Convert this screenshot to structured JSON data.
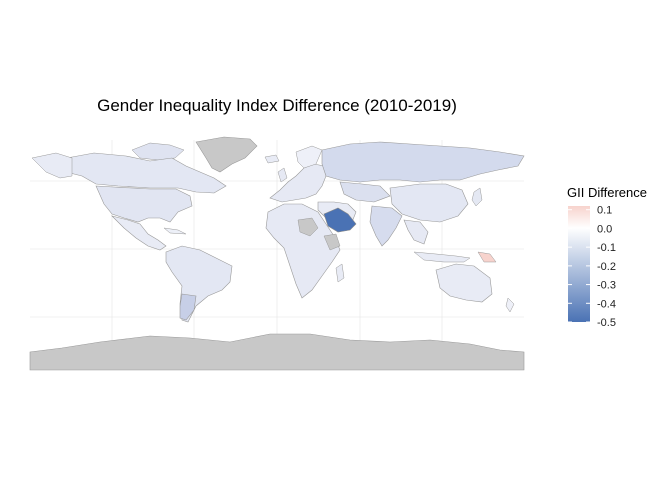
{
  "chart_data": {
    "type": "choropleth map",
    "title": "Gender Inequality Index Difference (2010-2019)",
    "legend": {
      "title": "GII Difference",
      "placement": "right",
      "range": [
        -0.5,
        0.12
      ],
      "ticks": [
        "0.1",
        "0.0",
        "-0.1",
        "-0.2",
        "-0.3",
        "-0.4",
        "-0.5"
      ],
      "tick_values": [
        0.1,
        0.0,
        -0.1,
        -0.2,
        -0.3,
        -0.4,
        -0.5
      ]
    },
    "colors": {
      "positive": "#f7d3cd",
      "zero": "#ffffff",
      "negative": "#4a72b4",
      "missing": "#c8c8c8",
      "border": "#999999",
      "grid": "#ebebeb"
    },
    "grid": true,
    "regions": [
      {
        "name": "Saudi Arabia",
        "value": -0.48
      },
      {
        "name": "Papua New Guinea",
        "value": 0.08
      },
      {
        "name": "Russia",
        "value": -0.11
      },
      {
        "name": "Canada",
        "value": -0.05
      },
      {
        "name": "United States",
        "value": -0.06
      },
      {
        "name": "Argentina",
        "value": -0.15
      },
      {
        "name": "Australia",
        "value": -0.04
      },
      {
        "name": "China",
        "value": -0.05
      },
      {
        "name": "India",
        "value": -0.1
      }
    ]
  }
}
